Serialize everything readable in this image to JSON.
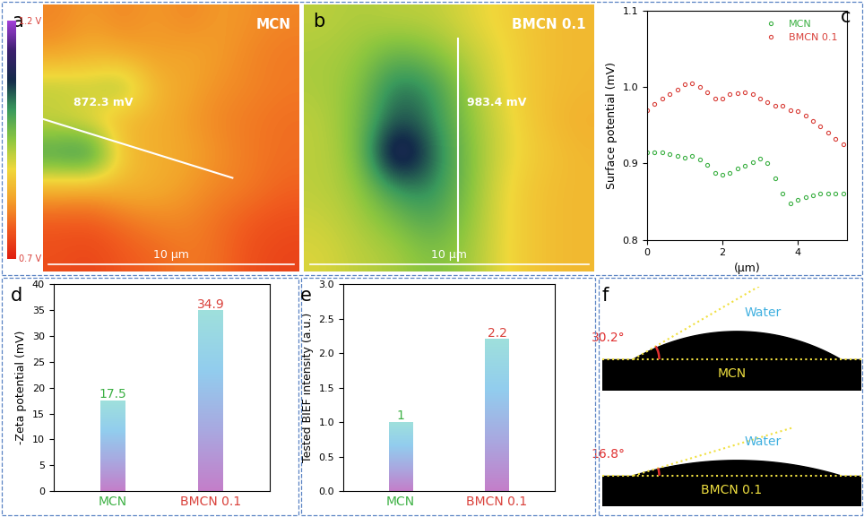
{
  "chart_data": [
    {
      "type": "heatmap",
      "label": "a",
      "title": "MCN",
      "annotation": "872.3 mV",
      "scale_bar": "10 μm",
      "tick_labels": false,
      "cells": [
        [
          0.8,
          0.82,
          0.8,
          0.82,
          0.8,
          0.82,
          0.81,
          0.8
        ],
        [
          0.82,
          0.84,
          0.83,
          0.82,
          0.83,
          0.82,
          0.8,
          0.79
        ],
        [
          0.93,
          0.92,
          0.95,
          0.85,
          0.83,
          0.81,
          0.8,
          0.79
        ],
        [
          0.9,
          0.88,
          0.84,
          0.84,
          0.82,
          0.8,
          0.79,
          0.78
        ],
        [
          1.02,
          1.05,
          0.86,
          0.84,
          0.83,
          0.81,
          0.79,
          0.78
        ],
        [
          0.84,
          0.83,
          0.85,
          0.84,
          0.82,
          0.8,
          0.79,
          0.77
        ],
        [
          0.76,
          0.76,
          0.78,
          0.8,
          0.8,
          0.78,
          0.76,
          0.75
        ],
        [
          0.75,
          0.74,
          0.76,
          0.77,
          0.79,
          0.78,
          0.75,
          0.74
        ]
      ],
      "colorbar": {
        "range": [
          0.7,
          1.2
        ],
        "ticks": [
          {
            "value": 0.7,
            "label": "0.7 V"
          },
          {
            "value": 1.2,
            "label": "1.2 V"
          }
        ]
      }
    },
    {
      "type": "heatmap",
      "label": "b",
      "title": "BMCN 0.1",
      "annotation": "983.4 mV",
      "scale_bar": "10 μm",
      "tick_labels": false,
      "cells": [
        [
          0.92,
          0.93,
          0.92,
          0.92,
          0.9,
          0.88,
          0.86,
          0.85
        ],
        [
          0.93,
          0.94,
          0.98,
          0.96,
          0.92,
          0.89,
          0.86,
          0.85
        ],
        [
          0.93,
          0.95,
          1.04,
          1.02,
          0.94,
          0.89,
          0.86,
          0.85
        ],
        [
          0.92,
          0.96,
          1.06,
          1.03,
          0.95,
          0.9,
          0.86,
          0.84
        ],
        [
          0.92,
          0.95,
          1.15,
          1.05,
          0.96,
          0.9,
          0.87,
          0.85
        ],
        [
          0.92,
          0.94,
          1.02,
          1.03,
          0.96,
          0.89,
          0.86,
          0.85
        ],
        [
          0.91,
          0.93,
          0.96,
          1.0,
          0.95,
          0.89,
          0.86,
          0.85
        ],
        [
          0.9,
          0.92,
          0.93,
          0.96,
          0.94,
          0.89,
          0.86,
          0.85
        ]
      ],
      "clim": [
        0.7,
        1.2
      ]
    },
    {
      "type": "line",
      "label": "c",
      "x_label": "(μm)",
      "y_label": "Surface potential (mV)",
      "x": [
        0,
        0.2,
        0.4,
        0.6,
        0.8,
        1.0,
        1.2,
        1.4,
        1.6,
        1.8,
        2.0,
        2.2,
        2.4,
        2.6,
        2.8,
        3.0,
        3.2,
        3.4,
        3.6,
        3.8,
        4.0,
        4.2,
        4.4,
        4.6,
        4.8,
        5.0,
        5.2
      ],
      "series": [
        {
          "name": "MCN",
          "color": "#3cb043",
          "marker": "o",
          "line_style": "none",
          "values": [
            0.915,
            0.915,
            0.914,
            0.912,
            0.91,
            0.908,
            0.91,
            0.905,
            0.898,
            0.888,
            0.885,
            0.888,
            0.893,
            0.897,
            0.902,
            0.906,
            0.9,
            0.88,
            0.86,
            0.848,
            0.852,
            0.856,
            0.858,
            0.86,
            0.861,
            0.86,
            0.86
          ]
        },
        {
          "name": "BMCN 0.1",
          "color": "#d9403a",
          "marker": "o",
          "line_style": "none",
          "values": [
            0.97,
            0.978,
            0.985,
            0.99,
            0.996,
            1.003,
            1.005,
            1.0,
            0.993,
            0.985,
            0.985,
            0.99,
            0.992,
            0.993,
            0.99,
            0.985,
            0.98,
            0.975,
            0.975,
            0.97,
            0.968,
            0.962,
            0.955,
            0.948,
            0.94,
            0.932,
            0.925
          ]
        }
      ],
      "xlim": [
        0,
        5.3
      ],
      "xticks": [
        0,
        2,
        4
      ],
      "ylim": [
        0.8,
        1.1
      ],
      "yticks": [
        0.8,
        0.9,
        {
          "value": 1.0,
          "label": "1.0"
        },
        1.1
      ],
      "legend": "upper right",
      "grid": false
    },
    {
      "type": "bar",
      "label": "d",
      "y_label": "-Zeta potential (mV)",
      "categories": [
        "MCN",
        "BMCN 0.1"
      ],
      "values": [
        17.5,
        34.9
      ],
      "color": "#9fe0dc",
      "ylim": [
        0,
        40
      ],
      "yticks": [
        0,
        5,
        10,
        15,
        20,
        25,
        30,
        35,
        40
      ],
      "data_labels": true,
      "grid": false
    },
    {
      "type": "bar",
      "label": "e",
      "y_label": "Tested BIEF intensity (a.u.)",
      "categories": [
        "MCN",
        "BMCN 0.1"
      ],
      "values": [
        1,
        2.2
      ],
      "color": "#9fe0dc",
      "ylim": [
        0,
        3.0
      ],
      "yticks": [
        {
          "value": 0,
          "label": "0.0"
        },
        0.5,
        {
          "value": 1,
          "label": "1.0"
        },
        1.5,
        {
          "value": 2,
          "label": "2.0"
        },
        2.5,
        {
          "value": 3,
          "label": "3.0"
        }
      ],
      "data_labels": true,
      "grid": false
    }
  ],
  "diagram": {
    "label": "f",
    "images": [
      {
        "angle": {
          "value": 30.2,
          "label": "30.2°"
        },
        "liquid": "Water",
        "substrate": "MCN"
      },
      {
        "angle": {
          "value": 16.8,
          "label": "16.8°"
        },
        "liquid": "Water",
        "substrate": "BMCN 0.1"
      }
    ]
  }
}
